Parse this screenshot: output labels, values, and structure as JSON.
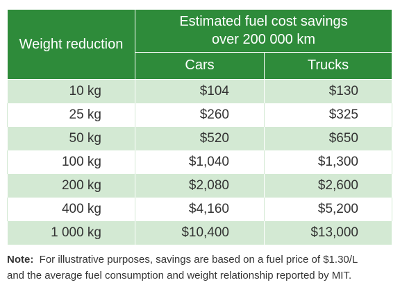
{
  "table": {
    "header": {
      "weight_reduction": "Weight reduction",
      "savings_line1": "Estimated fuel cost savings",
      "savings_line2": "over 200 000 km",
      "cars": "Cars",
      "trucks": "Trucks"
    },
    "rows": [
      {
        "weight": "10 kg",
        "cars": "$104",
        "trucks": "$130"
      },
      {
        "weight": "25 kg",
        "cars": "$260",
        "trucks": "$325"
      },
      {
        "weight": "50 kg",
        "cars": "$520",
        "trucks": "$650"
      },
      {
        "weight": "100 kg",
        "cars": "$1,040",
        "trucks": "$1,300"
      },
      {
        "weight": "200 kg",
        "cars": "$2,080",
        "trucks": "$2,600"
      },
      {
        "weight": "400 kg",
        "cars": "$4,160",
        "trucks": "$5,200"
      },
      {
        "weight": "1 000 kg",
        "cars": "$10,400",
        "trucks": "$13,000"
      }
    ]
  },
  "note": {
    "label": "Note:",
    "line1": "For illustrative purposes, savings are based on a fuel price of $1.30/L",
    "line2": "and the average fuel consumption and weight relationship reported by MIT."
  },
  "colors": {
    "header_green": "#2e8b3a",
    "row_tint": "#d3e9d3",
    "text": "#333333"
  }
}
